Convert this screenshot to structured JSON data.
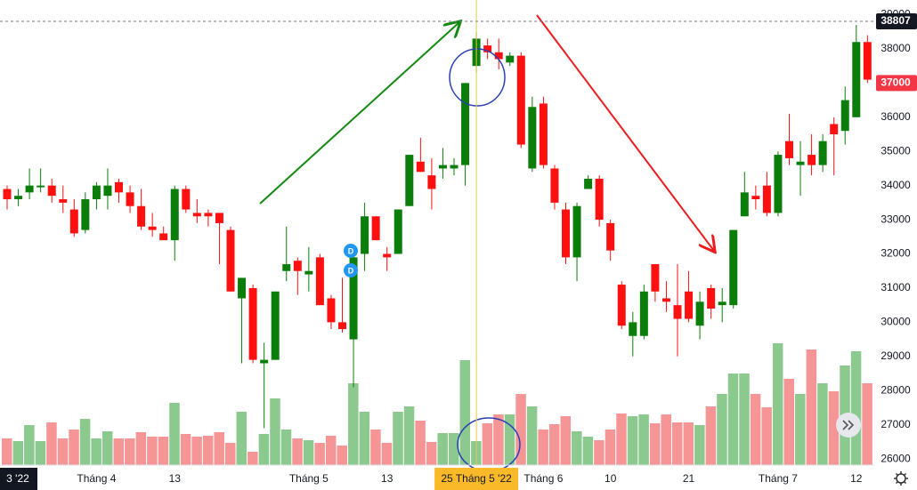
{
  "chart_data": {
    "type": "candlestick",
    "categories": [
      null,
      "3 '22",
      null,
      null,
      null,
      null,
      null,
      null,
      "Tháng 4",
      null,
      null,
      null,
      null,
      null,
      null,
      "13",
      null,
      null,
      null,
      null,
      null,
      null,
      null,
      null,
      null,
      null,
      null,
      "Tháng 5",
      null,
      null,
      null,
      null,
      null,
      null,
      "13",
      null,
      null,
      null,
      null,
      null,
      null,
      null,
      "25 Tháng 5 '22",
      null,
      null,
      null,
      null,
      null,
      "Tháng 6",
      null,
      null,
      null,
      null,
      null,
      "10",
      null,
      null,
      null,
      null,
      null,
      null,
      "21",
      null,
      null,
      null,
      null,
      null,
      null,
      null,
      "Tháng 7",
      null,
      null,
      null,
      null,
      null,
      null,
      "12",
      null
    ],
    "highlight_category": "25 Tháng 5 '22",
    "open": [
      33900,
      33600,
      33800,
      33950,
      34000,
      33600,
      33300,
      32700,
      33600,
      33700,
      34100,
      33800,
      33400,
      32800,
      32600,
      32400,
      33900,
      33200,
      33200,
      33200,
      32700,
      30700,
      31000,
      28800,
      28900,
      31500,
      31800,
      31400,
      31900,
      30700,
      30000,
      29500,
      32000,
      33100,
      32000,
      32000,
      33400,
      34700,
      34300,
      34500,
      34500,
      34600,
      37500,
      38100,
      37900,
      37600,
      37800,
      34500,
      36400,
      34500,
      33300,
      31900,
      33900,
      34200,
      32900,
      31100,
      29600,
      29600,
      31700,
      30700,
      30500,
      30900,
      29900,
      31000,
      30500,
      30500,
      33100,
      33700,
      34000,
      33200,
      35300,
      34600,
      34900,
      34600,
      35800,
      35600,
      36000,
      38200
    ],
    "high": [
      34000,
      33900,
      34500,
      34500,
      34200,
      34000,
      33600,
      33800,
      34100,
      34500,
      34200,
      34000,
      33900,
      33200,
      32800,
      34000,
      34000,
      33600,
      33300,
      33200,
      32800,
      31300,
      31100,
      29400,
      30900,
      32800,
      31900,
      32200,
      32000,
      30800,
      31300,
      32000,
      33500,
      33100,
      32200,
      33300,
      34900,
      35400,
      34800,
      35100,
      34800,
      37000,
      38500,
      38300,
      38300,
      37900,
      37900,
      36600,
      36600,
      34600,
      33500,
      33500,
      34300,
      34300,
      33000,
      31200,
      30300,
      31100,
      31700,
      31200,
      31700,
      31500,
      30900,
      31100,
      31000,
      32700,
      34400,
      34000,
      34400,
      35000,
      36100,
      35300,
      35500,
      35500,
      36000,
      36900,
      38700,
      38400
    ],
    "low": [
      33300,
      33400,
      33600,
      33800,
      33500,
      33200,
      32500,
      32600,
      33300,
      33300,
      33500,
      33200,
      32700,
      32500,
      32400,
      31800,
      33200,
      32900,
      32800,
      31700,
      30900,
      28800,
      28800,
      26900,
      28900,
      31200,
      30800,
      30900,
      30500,
      29800,
      29700,
      28100,
      31500,
      32400,
      31500,
      32000,
      33400,
      34400,
      33300,
      34200,
      34300,
      34000,
      37300,
      37700,
      37400,
      37500,
      35100,
      34400,
      34500,
      33300,
      31700,
      31200,
      33900,
      32800,
      31800,
      29800,
      29000,
      29500,
      30600,
      30300,
      29000,
      30000,
      29500,
      30100,
      30000,
      30400,
      33100,
      33300,
      33100,
      33100,
      34600,
      33700,
      34300,
      34400,
      34300,
      35200,
      36000,
      37000
    ],
    "close": [
      33600,
      33700,
      34000,
      34000,
      33700,
      33500,
      32600,
      33600,
      34000,
      34000,
      33800,
      33400,
      32800,
      32700,
      32400,
      33900,
      33300,
      33100,
      33100,
      32900,
      30900,
      31300,
      28900,
      28900,
      30900,
      31700,
      31500,
      31500,
      30500,
      30000,
      29800,
      31900,
      33100,
      32400,
      31900,
      33300,
      34900,
      34400,
      33900,
      34600,
      34600,
      37000,
      38300,
      37900,
      37700,
      37800,
      35200,
      36300,
      34600,
      33500,
      31900,
      33400,
      34200,
      33000,
      32100,
      29900,
      30000,
      30900,
      30900,
      30600,
      30100,
      30100,
      30600,
      30400,
      30600,
      32700,
      33800,
      33600,
      33200,
      34900,
      34800,
      34700,
      34600,
      35300,
      35500,
      36500,
      38200,
      37100
    ],
    "volume": [
      30,
      27,
      45,
      27,
      48,
      30,
      40,
      52,
      30,
      38,
      30,
      30,
      37,
      32,
      32,
      70,
      35,
      32,
      33,
      37,
      25,
      60,
      15,
      35,
      75,
      40,
      30,
      28,
      25,
      33,
      22,
      92,
      60,
      40,
      25,
      60,
      66,
      50,
      26,
      36,
      36,
      118,
      27,
      47,
      57,
      57,
      80,
      66,
      40,
      46,
      55,
      38,
      32,
      28,
      40,
      58,
      55,
      57,
      47,
      57,
      48,
      48,
      45,
      66,
      80,
      103,
      103,
      80,
      65,
      137,
      97,
      80,
      130,
      92,
      83,
      112,
      128,
      92
    ],
    "volume_lim": [
      0,
      140
    ],
    "ylim": [
      25820,
      39430
    ],
    "yticks": [
      26000,
      27000,
      28000,
      29000,
      30000,
      31000,
      32000,
      33000,
      34000,
      35000,
      36000,
      37000,
      38000,
      39000
    ],
    "price_markers": [
      {
        "value": 38807,
        "color": "#131722"
      },
      {
        "value": 37000,
        "color": "#f23645"
      }
    ],
    "up_color": "#0b7d0b",
    "down_color": "#ff1010",
    "volume_up_color": "#8cc98f",
    "volume_down_color": "#f59595",
    "badges": [
      "D",
      "D"
    ]
  }
}
